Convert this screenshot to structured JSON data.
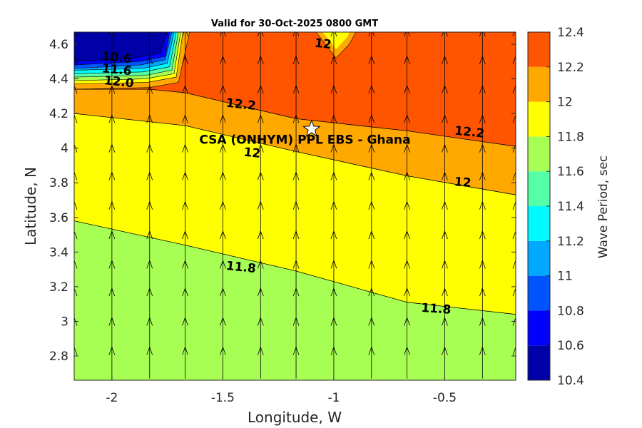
{
  "chart_data": {
    "type": "filled-contour",
    "title": "Valid for 30-Oct-2025 0800 GMT",
    "xlabel": "Longitude, W",
    "ylabel": "Latitude, N",
    "xlim": [
      -2.17,
      -0.18
    ],
    "ylim": [
      2.66,
      4.67
    ],
    "xticks": [
      -2,
      -1.5,
      -1,
      -0.5
    ],
    "yticks": [
      2.8,
      3,
      3.2,
      3.4,
      3.6,
      3.8,
      4,
      4.2,
      4.4,
      4.6
    ],
    "colorbar": {
      "label": "Wave Period, sec",
      "ticks": [
        10.4,
        10.6,
        10.8,
        11,
        11.2,
        11.4,
        11.6,
        11.8,
        12,
        12.2,
        12.4
      ],
      "levels": [
        10.4,
        10.6,
        10.8,
        11,
        11.2,
        11.4,
        11.6,
        11.8,
        12,
        12.2,
        12.4
      ],
      "colors": [
        "#0000a8",
        "#0000ff",
        "#0054ff",
        "#00a8ff",
        "#00fbff",
        "#54ffa8",
        "#a8ff54",
        "#ffff00",
        "#ffa800",
        "#ff5400"
      ]
    },
    "contours": [
      {
        "level": 11.8,
        "points": [
          [
            -2.17,
            3.58
          ],
          [
            -1.67,
            3.44
          ],
          [
            -1.17,
            3.29
          ],
          [
            -0.67,
            3.11
          ],
          [
            -0.18,
            3.04
          ]
        ]
      },
      {
        "level": 12,
        "points": [
          [
            -2.17,
            4.2
          ],
          [
            -1.67,
            4.13
          ],
          [
            -1.17,
            3.98
          ],
          [
            -0.67,
            3.84
          ],
          [
            -0.18,
            3.73
          ]
        ]
      },
      {
        "level": 12.2,
        "points": [
          [
            -2.17,
            4.34
          ],
          [
            -1.83,
            4.34
          ],
          [
            -1.67,
            4.32
          ],
          [
            -1.17,
            4.17
          ],
          [
            -0.67,
            4.1
          ],
          [
            -0.18,
            4.01
          ]
        ]
      }
    ],
    "contour_labels": [
      {
        "text": "11.8",
        "lon": -1.42,
        "lat": 3.29
      },
      {
        "text": "11.8",
        "lon": -0.54,
        "lat": 3.05
      },
      {
        "text": "12",
        "lon": -1.37,
        "lat": 3.95
      },
      {
        "text": "12",
        "lon": -0.42,
        "lat": 3.78
      },
      {
        "text": "12.2",
        "lon": -1.42,
        "lat": 4.23
      },
      {
        "text": "12.2",
        "lon": -0.39,
        "lat": 4.07
      },
      {
        "text": "12",
        "lon": -1.05,
        "lat": 4.58
      },
      {
        "text": "10.6",
        "lon": -1.98,
        "lat": 4.5
      },
      {
        "text": "11.6",
        "lon": -1.98,
        "lat": 4.43
      },
      {
        "text": "12.0",
        "lon": -1.97,
        "lat": 4.36
      }
    ],
    "annotations": [
      {
        "text": "CSA (ONHYM) PPL EBS  - Ghana",
        "lon": -1.13,
        "lat": 4.05,
        "marker": "star",
        "marker_lon": -1.1,
        "marker_lat": 4.11
      }
    ],
    "vectors": {
      "lons": [
        -2.17,
        -2.0,
        -1.83,
        -1.67,
        -1.5,
        -1.33,
        -1.17,
        -1.0,
        -0.83,
        -0.67,
        -0.5,
        -0.33,
        -0.18
      ],
      "lats": [
        2.76,
        2.93,
        3.1,
        3.26,
        3.43,
        3.6,
        3.77,
        3.93,
        4.1,
        4.27,
        4.44,
        4.6
      ],
      "direction": "north"
    }
  }
}
